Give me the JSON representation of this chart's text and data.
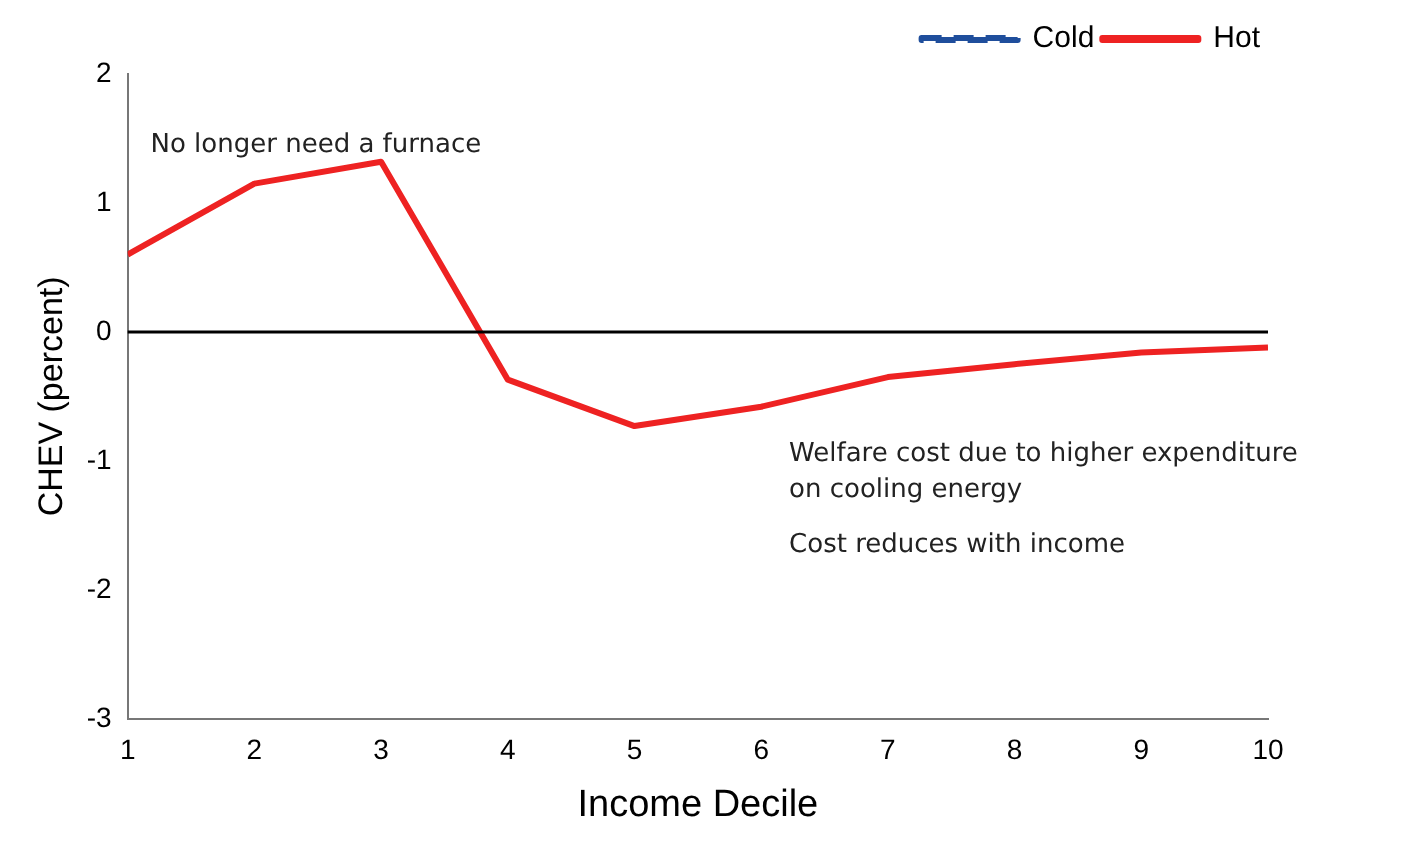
{
  "chart_data": {
    "type": "line",
    "xlabel": "Income Decile",
    "ylabel": "CHEV (percent)",
    "x": [
      1,
      2,
      3,
      4,
      5,
      6,
      7,
      8,
      9,
      10
    ],
    "series": [
      {
        "name": "Cold",
        "color": "#1f4e9c",
        "line_style": "dashed",
        "values": [
          null,
          null,
          null,
          null,
          null,
          null,
          null,
          null,
          null,
          null
        ]
      },
      {
        "name": "Hot",
        "color": "#ee2222",
        "line_style": "solid",
        "values": [
          0.6,
          1.15,
          1.32,
          -0.37,
          -0.73,
          -0.58,
          -0.35,
          -0.25,
          -0.16,
          -0.12
        ]
      }
    ],
    "xlim": [
      1,
      10
    ],
    "xticks": [
      1,
      2,
      3,
      4,
      5,
      6,
      7,
      8,
      9,
      10
    ],
    "ylim": [
      -3,
      2
    ],
    "yticks": [
      -3,
      -2,
      -1,
      0,
      1,
      2
    ],
    "ref_lines": [
      {
        "axis": "y",
        "value": 0,
        "color": "#000000"
      }
    ],
    "annotations": [
      "No longer need a furnace",
      "Welfare cost due to higher expenditure\non cooling energy",
      "Cost reduces with income"
    ],
    "grid": false,
    "legend": "top right",
    "marker": "none"
  }
}
